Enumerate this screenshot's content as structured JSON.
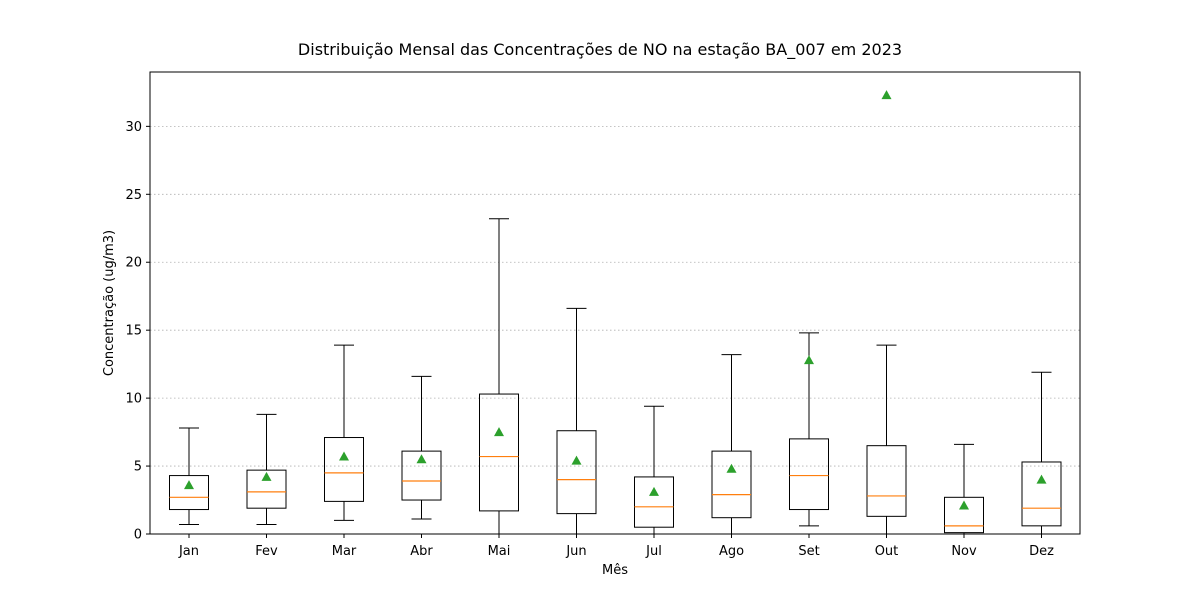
{
  "chart_data": {
    "type": "boxplot",
    "title": "Distribuição Mensal das Concentrações de NO na estação BA_007 em 2023",
    "xlabel": "Mês",
    "ylabel": "Concentração (ug/m3)",
    "ylim": [
      0,
      34
    ],
    "yticks": [
      0,
      5,
      10,
      15,
      20,
      25,
      30
    ],
    "grid": "y-dotted",
    "colors": {
      "median": "#ff7f0e",
      "mean": "#2ca02c",
      "box": "#000000"
    },
    "categories": [
      "Jan",
      "Fev",
      "Mar",
      "Abr",
      "Mai",
      "Jun",
      "Jul",
      "Ago",
      "Set",
      "Out",
      "Nov",
      "Dez"
    ],
    "boxes": [
      {
        "whislo": 0.7,
        "q1": 1.8,
        "med": 2.7,
        "q3": 4.3,
        "whishi": 7.8,
        "mean": 3.6
      },
      {
        "whislo": 0.7,
        "q1": 1.9,
        "med": 3.1,
        "q3": 4.7,
        "whishi": 8.8,
        "mean": 4.2
      },
      {
        "whislo": 1.0,
        "q1": 2.4,
        "med": 4.5,
        "q3": 7.1,
        "whishi": 13.9,
        "mean": 5.7
      },
      {
        "whislo": 1.1,
        "q1": 2.5,
        "med": 3.9,
        "q3": 6.1,
        "whishi": 11.6,
        "mean": 5.5
      },
      {
        "whislo": 0.0,
        "q1": 1.7,
        "med": 5.7,
        "q3": 10.3,
        "whishi": 23.2,
        "mean": 7.5
      },
      {
        "whislo": 0.0,
        "q1": 1.5,
        "med": 4.0,
        "q3": 7.6,
        "whishi": 16.6,
        "mean": 5.4
      },
      {
        "whislo": 0.0,
        "q1": 0.5,
        "med": 2.0,
        "q3": 4.2,
        "whishi": 9.4,
        "mean": 3.1
      },
      {
        "whislo": 0.0,
        "q1": 1.2,
        "med": 2.9,
        "q3": 6.1,
        "whishi": 13.2,
        "mean": 4.8
      },
      {
        "whislo": 0.6,
        "q1": 1.8,
        "med": 4.3,
        "q3": 7.0,
        "whishi": 14.8,
        "mean": 12.8
      },
      {
        "whislo": 0.0,
        "q1": 1.3,
        "med": 2.8,
        "q3": 6.5,
        "whishi": 13.9,
        "mean": 32.3
      },
      {
        "whislo": 0.0,
        "q1": 0.1,
        "med": 0.6,
        "q3": 2.7,
        "whishi": 6.6,
        "mean": 2.1
      },
      {
        "whislo": 0.0,
        "q1": 0.6,
        "med": 1.9,
        "q3": 5.3,
        "whishi": 11.9,
        "mean": 4.0
      }
    ]
  }
}
